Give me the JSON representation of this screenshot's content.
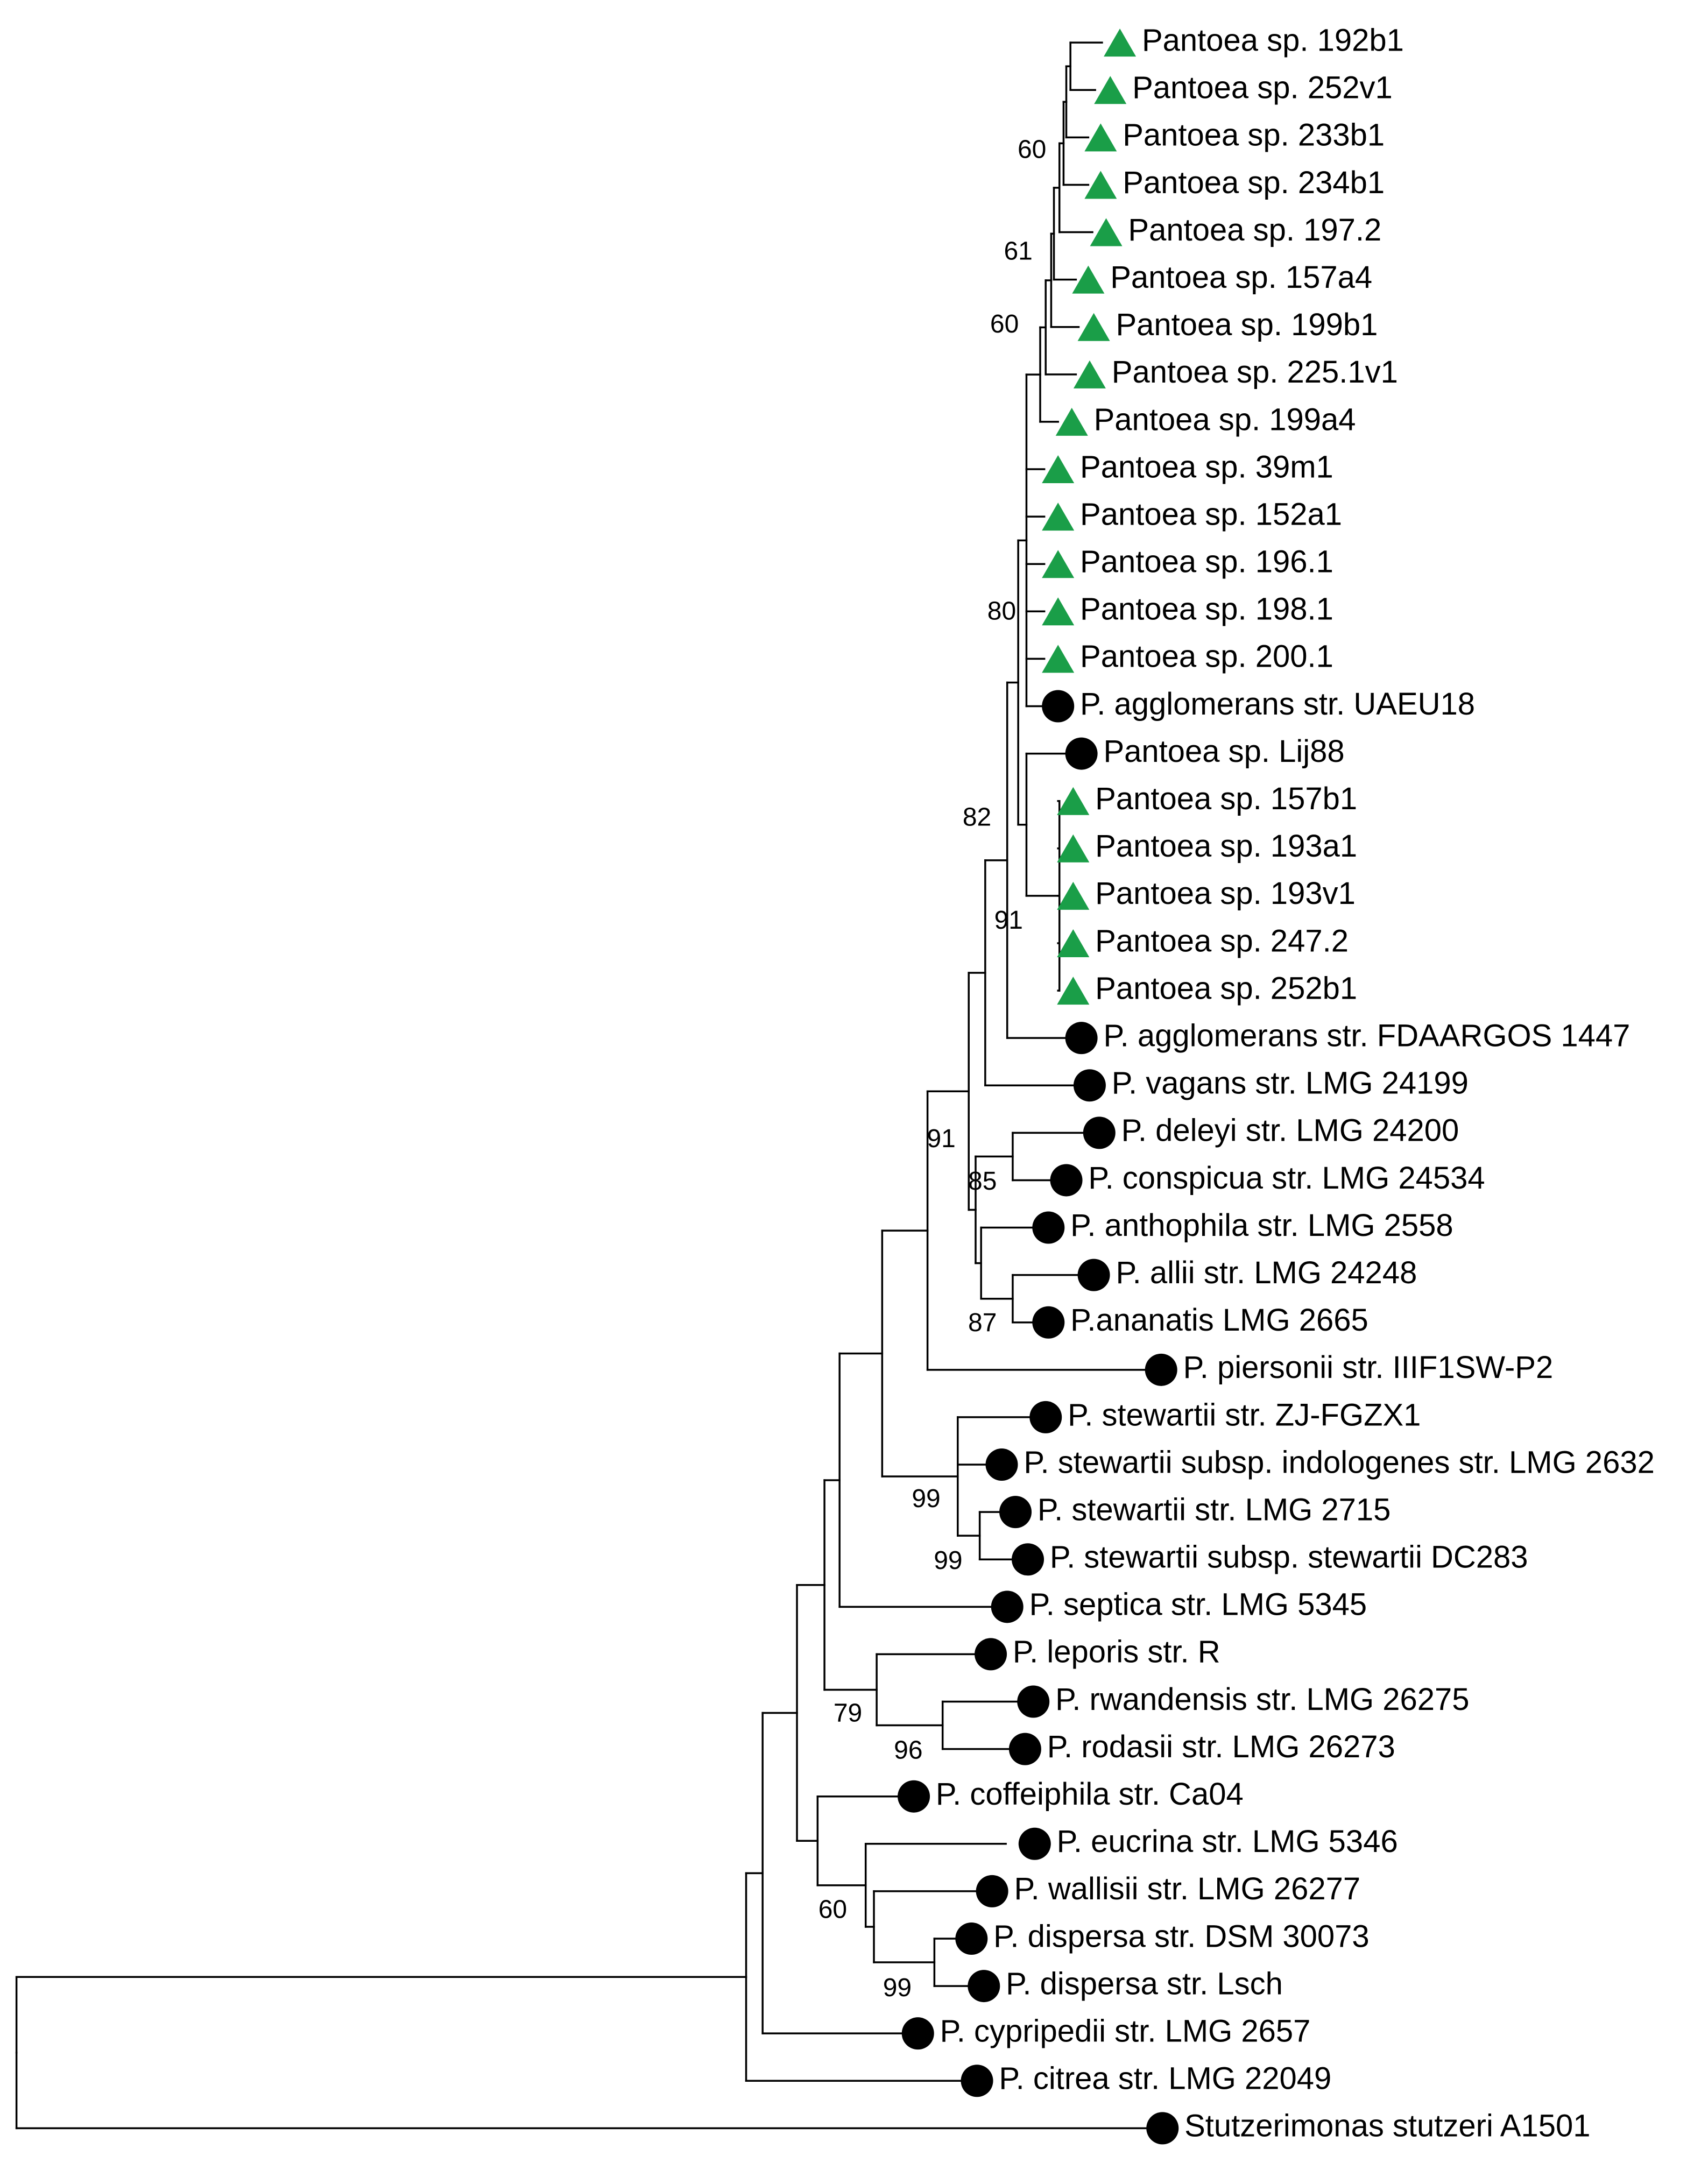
{
  "tree": {
    "marker_colors": {
      "triangle": "#1a9e48",
      "circle": "#000000"
    },
    "leaves": [
      {
        "id": "L1",
        "label": "Pantoea sp. 192b1",
        "marker": "triangle"
      },
      {
        "id": "L2",
        "label": "Pantoea sp. 252v1",
        "marker": "triangle"
      },
      {
        "id": "L3",
        "label": "Pantoea sp. 233b1",
        "marker": "triangle"
      },
      {
        "id": "L4",
        "label": "Pantoea sp. 234b1",
        "marker": "triangle"
      },
      {
        "id": "L5",
        "label": "Pantoea sp. 197.2",
        "marker": "triangle"
      },
      {
        "id": "L6",
        "label": "Pantoea sp. 157a4",
        "marker": "triangle"
      },
      {
        "id": "L7",
        "label": "Pantoea sp. 199b1",
        "marker": "triangle"
      },
      {
        "id": "L8",
        "label": "Pantoea sp. 225.1v1",
        "marker": "triangle"
      },
      {
        "id": "L9",
        "label": "Pantoea sp. 199a4",
        "marker": "triangle"
      },
      {
        "id": "L10",
        "label": "Pantoea sp. 39m1",
        "marker": "triangle"
      },
      {
        "id": "L11",
        "label": "Pantoea sp. 152a1",
        "marker": "triangle"
      },
      {
        "id": "L12",
        "label": "Pantoea sp. 196.1",
        "marker": "triangle"
      },
      {
        "id": "L13",
        "label": "Pantoea sp. 198.1",
        "marker": "triangle"
      },
      {
        "id": "L14",
        "label": "Pantoea sp. 200.1",
        "marker": "triangle"
      },
      {
        "id": "L15",
        "label": "P. agglomerans str. UAEU18",
        "marker": "circle"
      },
      {
        "id": "L16",
        "label": "Pantoea sp. Lij88",
        "marker": "circle"
      },
      {
        "id": "L17",
        "label": "Pantoea sp. 157b1",
        "marker": "triangle"
      },
      {
        "id": "L18",
        "label": "Pantoea sp. 193a1",
        "marker": "triangle"
      },
      {
        "id": "L19",
        "label": "Pantoea sp. 193v1",
        "marker": "triangle"
      },
      {
        "id": "L20",
        "label": "Pantoea sp. 247.2",
        "marker": "triangle"
      },
      {
        "id": "L21",
        "label": "Pantoea sp. 252b1",
        "marker": "triangle"
      },
      {
        "id": "L22",
        "label": "P. agglomerans str. FDAARGOS 1447",
        "marker": "circle"
      },
      {
        "id": "L23",
        "label": "P. vagans str. LMG 24199",
        "marker": "circle"
      },
      {
        "id": "L24",
        "label": "P. deleyi str. LMG 24200",
        "marker": "circle"
      },
      {
        "id": "L25",
        "label": "P. conspicua str. LMG 24534",
        "marker": "circle"
      },
      {
        "id": "L26",
        "label": "P. anthophila str. LMG 2558",
        "marker": "circle"
      },
      {
        "id": "L27",
        "label": "P. allii str. LMG 24248",
        "marker": "circle"
      },
      {
        "id": "L28",
        "label": "P.ananatis LMG 2665",
        "marker": "circle"
      },
      {
        "id": "L29",
        "label": "P. piersonii str. IIIF1SW-P2",
        "marker": "circle"
      },
      {
        "id": "L30",
        "label": "P. stewartii str. ZJ-FGZX1",
        "marker": "circle"
      },
      {
        "id": "L31",
        "label": "P. stewartii subsp. indologenes str. LMG 2632",
        "marker": "circle"
      },
      {
        "id": "L32",
        "label": "P. stewartii str. LMG 2715",
        "marker": "circle"
      },
      {
        "id": "L33",
        "label": "P. stewartii subsp. stewartii DC283",
        "marker": "circle"
      },
      {
        "id": "L34",
        "label": "P. septica str. LMG 5345",
        "marker": "circle"
      },
      {
        "id": "L35",
        "label": "P. leporis str. R",
        "marker": "circle"
      },
      {
        "id": "L36",
        "label": "P. rwandensis str. LMG 26275",
        "marker": "circle"
      },
      {
        "id": "L37",
        "label": "P. rodasii str. LMG 26273",
        "marker": "circle"
      },
      {
        "id": "L38",
        "label": "P. coffeiphila str. Ca04",
        "marker": "circle"
      },
      {
        "id": "L39",
        "label": "P. eucrina str. LMG 5346",
        "marker": "circle"
      },
      {
        "id": "L40",
        "label": "P. wallisii str. LMG 26277",
        "marker": "circle"
      },
      {
        "id": "L41",
        "label": "P. dispersa str. DSM 30073",
        "marker": "circle"
      },
      {
        "id": "L42",
        "label": "P. dispersa str. Lsch",
        "marker": "circle"
      },
      {
        "id": "L43",
        "label": "P. cypripedii str. LMG 2657",
        "marker": "circle"
      },
      {
        "id": "L44",
        "label": "P. citrea str. LMG 22049",
        "marker": "circle"
      },
      {
        "id": "L45",
        "label": "Stutzerimonas stutzeri A1501",
        "marker": "circle"
      }
    ],
    "bootstrap_values": [
      "60",
      "61",
      "60",
      "80",
      "82",
      "91",
      "91",
      "85",
      "87",
      "99",
      "99",
      "79",
      "96",
      "60",
      "99"
    ]
  }
}
